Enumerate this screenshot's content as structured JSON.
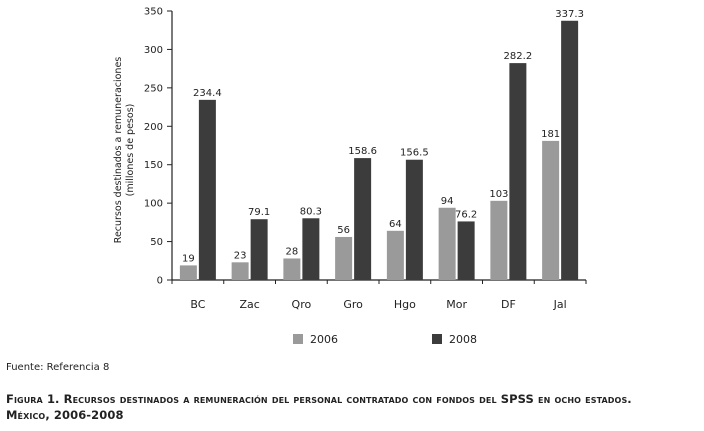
{
  "chart_data": {
    "type": "bar",
    "title": "",
    "xlabel": "",
    "ylabel": [
      "Recursos destinados a remuneraciones",
      "(millones de pesos)"
    ],
    "ylim": [
      0,
      350
    ],
    "yticks": [
      0,
      50,
      100,
      150,
      200,
      250,
      300,
      350
    ],
    "categories": [
      "BC",
      "Zac",
      "Qro",
      "Gro",
      "Hgo",
      "Mor",
      "DF",
      "Jal"
    ],
    "series": [
      {
        "name": "2006",
        "color": "#9a9a9a",
        "values": [
          19,
          23,
          28,
          56,
          64,
          94,
          103,
          181
        ],
        "labels": [
          "19",
          "23",
          "28",
          "56",
          "64",
          "94",
          "103",
          "181"
        ]
      },
      {
        "name": "2008",
        "color": "#3c3c3c",
        "values": [
          234.4,
          79.1,
          80.3,
          158.6,
          156.5,
          76.2,
          282.2,
          337.3
        ],
        "labels": [
          "234.4",
          "79.1",
          "80.3",
          "158.6",
          "156.5",
          "76.2",
          "282.2",
          "337.3"
        ]
      }
    ],
    "legend": "bottom",
    "grid": false
  },
  "source": "Fuente: Referencia 8",
  "caption": {
    "line1": "Figura 1. Recursos destinados a remuneración del personal contratado con fondos del SPSS en ocho estados.",
    "line2": "México, 2006-2008"
  }
}
